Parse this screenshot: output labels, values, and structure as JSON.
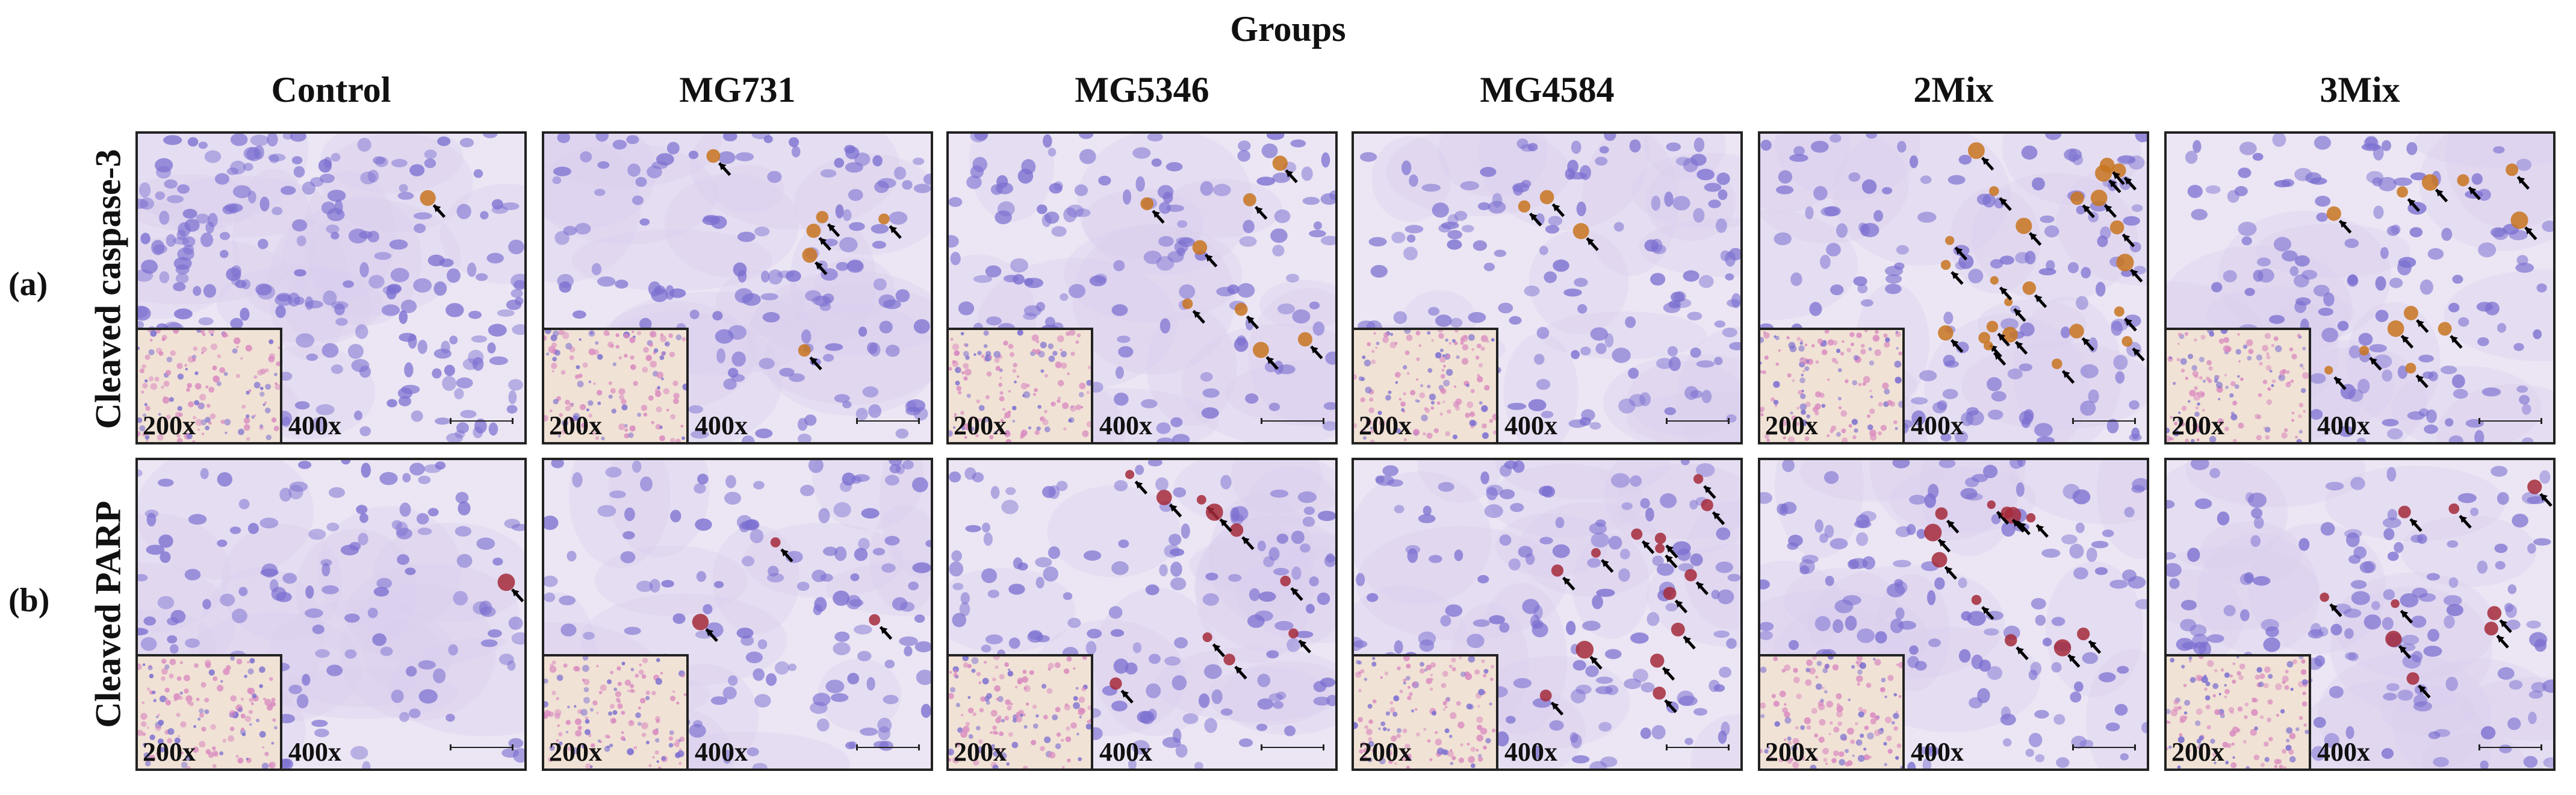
{
  "figure": {
    "title": "Groups",
    "columns": [
      "Control",
      "MG731",
      "MG5346",
      "MG4584",
      "2Mix",
      "3Mix"
    ],
    "rows": [
      {
        "letter": "(a)",
        "label": "Cleaved  caspase-3"
      },
      {
        "letter": "(b)",
        "label": "Cleaved  PARP"
      }
    ],
    "inset_magnification": "200x",
    "main_magnification": "400x"
  },
  "colors": {
    "nuclei": "#7b6fd0",
    "background": "#ece6f4",
    "stain_caspase": "#c8741f",
    "stain_parp": "#a52a3a",
    "arrow": "#000000",
    "inset_tissue": "#d98bbf"
  }
}
